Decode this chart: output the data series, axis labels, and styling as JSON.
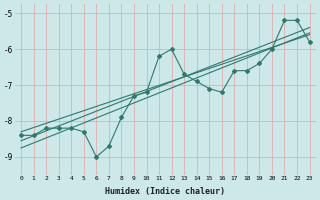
{
  "xlabel": "Humidex (Indice chaleur)",
  "ylabel": "",
  "bg_color": "#cce8e8",
  "line_color": "#2d7a6e",
  "grid_color": "#e8a0a0",
  "xlim": [
    -0.5,
    23.5
  ],
  "ylim": [
    -9.5,
    -4.75
  ],
  "xticks": [
    0,
    1,
    2,
    3,
    4,
    5,
    6,
    7,
    8,
    9,
    10,
    11,
    12,
    13,
    14,
    15,
    16,
    17,
    18,
    19,
    20,
    21,
    22,
    23
  ],
  "yticks": [
    -9,
    -8,
    -7,
    -6,
    -5
  ],
  "line1_x": [
    0,
    1,
    2,
    3,
    4,
    5,
    6,
    7,
    8,
    9,
    10,
    11,
    12,
    13,
    14,
    15,
    16,
    17,
    18,
    19,
    20,
    21,
    22,
    23
  ],
  "line1_y": [
    -8.4,
    -8.4,
    -8.2,
    -8.2,
    -8.2,
    -8.3,
    -9.0,
    -8.7,
    -7.9,
    -7.3,
    -7.2,
    -6.2,
    -6.0,
    -6.7,
    -6.9,
    -7.1,
    -7.2,
    -6.6,
    -6.6,
    -6.4,
    -6.0,
    -5.2,
    -5.2,
    -5.8
  ],
  "line2_x": [
    0,
    23
  ],
  "line2_y": [
    -8.55,
    -5.4
  ],
  "line3_x": [
    0,
    23
  ],
  "line3_y": [
    -8.3,
    -5.6
  ],
  "line4_x": [
    0,
    23
  ],
  "line4_y": [
    -8.75,
    -5.55
  ]
}
